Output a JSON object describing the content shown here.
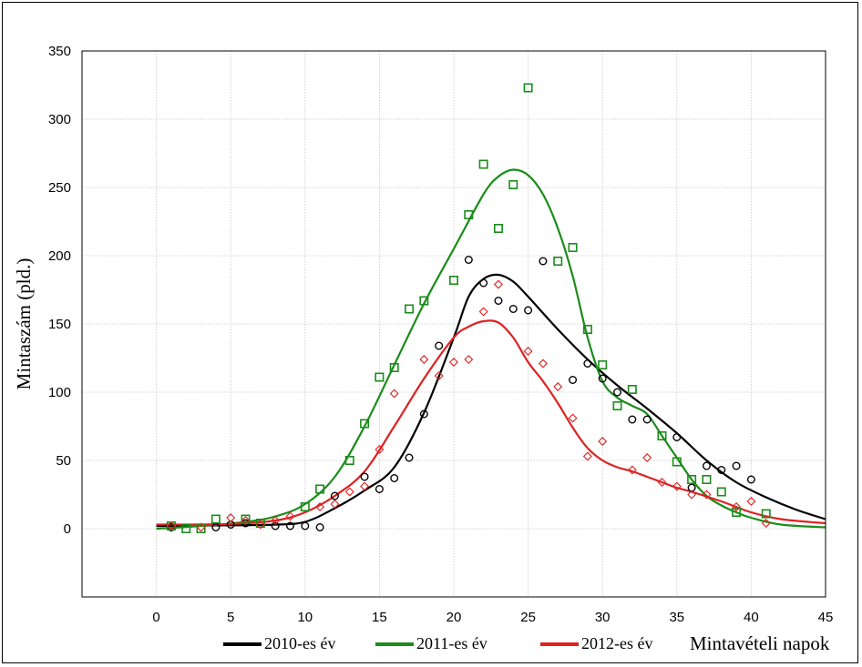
{
  "chart_data": {
    "type": "scatter",
    "title": "",
    "xlabel": "Mintavételi napok",
    "ylabel": "Mintaszám (pld.)",
    "xlim": [
      -5,
      45
    ],
    "ylim": [
      -50,
      350
    ],
    "xticks": [
      0,
      5,
      10,
      15,
      20,
      25,
      30,
      35,
      40,
      45
    ],
    "yticks": [
      0,
      50,
      100,
      150,
      200,
      250,
      300,
      350
    ],
    "grid": true,
    "legend_position": "bottom",
    "series": [
      {
        "name": "2010-es év",
        "color": "#000000",
        "marker": "circle",
        "points": [
          [
            1,
            1
          ],
          [
            4,
            1
          ],
          [
            5,
            3
          ],
          [
            6,
            4
          ],
          [
            8,
            2
          ],
          [
            9,
            2
          ],
          [
            10,
            2
          ],
          [
            11,
            1
          ],
          [
            12,
            24
          ],
          [
            14,
            38
          ],
          [
            15,
            29
          ],
          [
            16,
            37
          ],
          [
            17,
            52
          ],
          [
            18,
            84
          ],
          [
            19,
            134
          ],
          [
            21,
            197
          ],
          [
            22,
            180
          ],
          [
            23,
            167
          ],
          [
            24,
            161
          ],
          [
            25,
            160
          ],
          [
            26,
            196
          ],
          [
            28,
            109
          ],
          [
            29,
            121
          ],
          [
            30,
            110
          ],
          [
            31,
            100
          ],
          [
            32,
            80
          ],
          [
            33,
            80
          ],
          [
            35,
            67
          ],
          [
            36,
            30
          ],
          [
            37,
            46
          ],
          [
            38,
            43
          ],
          [
            39,
            46
          ],
          [
            40,
            36
          ]
        ],
        "curve": [
          [
            0,
            2
          ],
          [
            5,
            2.5
          ],
          [
            8,
            3
          ],
          [
            10,
            5
          ],
          [
            12,
            15
          ],
          [
            14,
            28
          ],
          [
            16,
            45
          ],
          [
            18,
            85
          ],
          [
            20,
            140
          ],
          [
            21,
            170
          ],
          [
            22,
            183
          ],
          [
            23,
            186
          ],
          [
            24,
            181
          ],
          [
            25,
            170
          ],
          [
            27,
            146
          ],
          [
            29,
            124
          ],
          [
            31,
            105
          ],
          [
            33,
            88
          ],
          [
            35,
            70
          ],
          [
            37,
            50
          ],
          [
            39,
            34
          ],
          [
            41,
            23
          ],
          [
            43,
            14
          ],
          [
            45,
            7
          ]
        ]
      },
      {
        "name": "2011-es év",
        "color": "#1a8c1a",
        "marker": "square",
        "points": [
          [
            1,
            2
          ],
          [
            2,
            0
          ],
          [
            3,
            0
          ],
          [
            4,
            7
          ],
          [
            6,
            7
          ],
          [
            7,
            4
          ],
          [
            10,
            16
          ],
          [
            11,
            29
          ],
          [
            13,
            50
          ],
          [
            14,
            77
          ],
          [
            15,
            111
          ],
          [
            16,
            118
          ],
          [
            17,
            161
          ],
          [
            18,
            167
          ],
          [
            20,
            182
          ],
          [
            21,
            230
          ],
          [
            22,
            267
          ],
          [
            23,
            220
          ],
          [
            24,
            252
          ],
          [
            25,
            323
          ],
          [
            27,
            196
          ],
          [
            28,
            206
          ],
          [
            29,
            146
          ],
          [
            30,
            120
          ],
          [
            31,
            90
          ],
          [
            32,
            102
          ],
          [
            34,
            68
          ],
          [
            35,
            49
          ],
          [
            36,
            36
          ],
          [
            37,
            36
          ],
          [
            38,
            27
          ],
          [
            39,
            12
          ],
          [
            41,
            11
          ]
        ],
        "curve": [
          [
            0,
            0
          ],
          [
            3,
            2
          ],
          [
            6,
            5
          ],
          [
            8,
            9
          ],
          [
            10,
            18
          ],
          [
            12,
            38
          ],
          [
            14,
            75
          ],
          [
            16,
            120
          ],
          [
            18,
            165
          ],
          [
            20,
            205
          ],
          [
            22,
            245
          ],
          [
            23,
            258
          ],
          [
            24,
            263
          ],
          [
            25,
            259
          ],
          [
            26,
            245
          ],
          [
            27,
            220
          ],
          [
            28,
            185
          ],
          [
            29,
            140
          ],
          [
            30,
            108
          ],
          [
            31,
            96
          ],
          [
            32,
            90
          ],
          [
            33,
            84
          ],
          [
            34,
            68
          ],
          [
            35,
            52
          ],
          [
            36,
            36
          ],
          [
            37,
            24
          ],
          [
            38,
            17
          ],
          [
            39,
            12
          ],
          [
            40,
            8
          ],
          [
            42,
            3
          ],
          [
            45,
            1
          ]
        ]
      },
      {
        "name": "2012-es év",
        "color": "#dd2222",
        "marker": "diamond",
        "points": [
          [
            1,
            2
          ],
          [
            3,
            1
          ],
          [
            5,
            8
          ],
          [
            6,
            6
          ],
          [
            7,
            3
          ],
          [
            8,
            6
          ],
          [
            9,
            9
          ],
          [
            11,
            16
          ],
          [
            12,
            18
          ],
          [
            13,
            27
          ],
          [
            14,
            31
          ],
          [
            15,
            58
          ],
          [
            16,
            99
          ],
          [
            18,
            124
          ],
          [
            19,
            112
          ],
          [
            20,
            122
          ],
          [
            21,
            124
          ],
          [
            22,
            159
          ],
          [
            23,
            179
          ],
          [
            25,
            130
          ],
          [
            26,
            121
          ],
          [
            27,
            104
          ],
          [
            28,
            81
          ],
          [
            29,
            53
          ],
          [
            30,
            64
          ],
          [
            32,
            43
          ],
          [
            33,
            52
          ],
          [
            34,
            34
          ],
          [
            35,
            31
          ],
          [
            36,
            25
          ],
          [
            37,
            25
          ],
          [
            39,
            16
          ],
          [
            40,
            20
          ],
          [
            41,
            4
          ]
        ],
        "curve": [
          [
            0,
            3
          ],
          [
            5,
            3.5
          ],
          [
            8,
            6
          ],
          [
            10,
            12
          ],
          [
            12,
            24
          ],
          [
            14,
            42
          ],
          [
            16,
            75
          ],
          [
            18,
            110
          ],
          [
            20,
            140
          ],
          [
            21,
            148
          ],
          [
            22,
            152
          ],
          [
            23,
            151
          ],
          [
            24,
            140
          ],
          [
            25,
            122
          ],
          [
            26,
            108
          ],
          [
            27,
            92
          ],
          [
            28,
            74
          ],
          [
            29,
            59
          ],
          [
            30,
            50
          ],
          [
            31,
            45
          ],
          [
            32,
            42
          ],
          [
            33,
            38
          ],
          [
            34,
            34
          ],
          [
            35,
            30
          ],
          [
            36,
            27
          ],
          [
            38,
            20
          ],
          [
            40,
            12
          ],
          [
            42,
            7
          ],
          [
            45,
            4
          ]
        ]
      }
    ]
  }
}
